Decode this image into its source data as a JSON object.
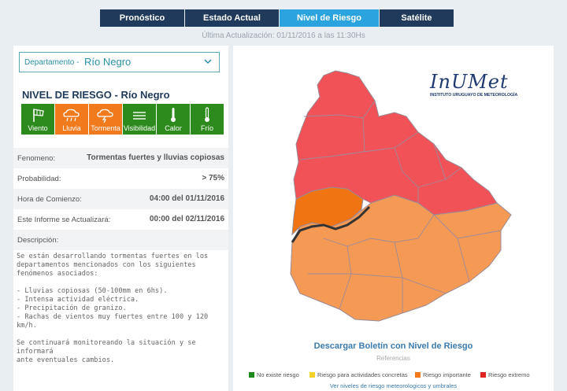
{
  "nav": {
    "tabs": [
      {
        "label": "Pronóstico"
      },
      {
        "label": "Estado Actual"
      },
      {
        "label": "Nivel de Riesgo"
      },
      {
        "label": "Satélite"
      }
    ],
    "active_tab": "Nivel de Riesgo"
  },
  "last_update": "Última Actualización: 01/11/2016 a las 11:30Hs",
  "department": {
    "label": "Departamento -",
    "value": "Río Negro"
  },
  "heading": "NIVEL DE RIESGO - Río Negro",
  "tiles": [
    {
      "label": "Viento",
      "icon": "wind-icon",
      "color": "#2d8a1c"
    },
    {
      "label": "Lluvia",
      "icon": "rain-cloud-icon",
      "color": "#f07a1c"
    },
    {
      "label": "Tormenta",
      "icon": "storm-cloud-icon",
      "color": "#f07a1c"
    },
    {
      "label": "Visibilidad",
      "icon": "fog-icon",
      "color": "#2d8a1c"
    },
    {
      "label": "Calor",
      "icon": "thermometer-icon",
      "color": "#2d8a1c"
    },
    {
      "label": "Frío",
      "icon": "thermometer-icon",
      "color": "#2d8a1c"
    }
  ],
  "info": {
    "fenomeno": {
      "key": "Fenomeno:",
      "value": "Tormentas fuertes y lluvias copiosas"
    },
    "probabilidad": {
      "key": "Probabilidad:",
      "value": "> 75%"
    },
    "hora": {
      "key": "Hora de Comienzo:",
      "value": "04:00 del 01/11/2016"
    },
    "actualizara": {
      "key": "Este Informe se Actualizará:",
      "value": "00:00 del 02/11/2016"
    },
    "descripcion": {
      "key": "Descripción:"
    }
  },
  "description": {
    "line1": "Se están desarrollando tormentas fuertes en los",
    "line2": "departamentos mencionados con los siguientes",
    "line3": "fenómenos asociados:",
    "line4": "- Lluvias copiosas (50-100mm en 6hs).",
    "line5": "- Intensa actividad eléctrica.",
    "line6": "- Precipitación de granizo.",
    "line7": "- Rachas de vientos muy fuertes entre 100 y 120 km/h.",
    "line8": "Se continuará monitoreando la situación y se informará",
    "line9": "ante eventuales cambios."
  },
  "logo": {
    "title": "InUMet",
    "subtitle": "INSTITUTO URUGUAYO DE METEOROLOGÍA"
  },
  "download_label": "Descargar Boletín con Nivel de Riesgo",
  "references_label": "Referencias",
  "legend": [
    {
      "label": "No existe riesgo",
      "color": "#1c8a1c"
    },
    {
      "label": "Riesgo para actividades concretas",
      "color": "#f2d22a"
    },
    {
      "label": "Riesgo importante",
      "color": "#f07a1c"
    },
    {
      "label": "Riesgo extremo",
      "color": "#e02424"
    }
  ],
  "more_link": "Ver niveles de riesgo meteorologicos y umbrales",
  "colors": {
    "nav_bg": "#1f3a5a",
    "nav_active": "#2aa3df",
    "map_red": "#f05258",
    "map_orange_dark": "#f07412",
    "map_orange": "#f59a55"
  }
}
